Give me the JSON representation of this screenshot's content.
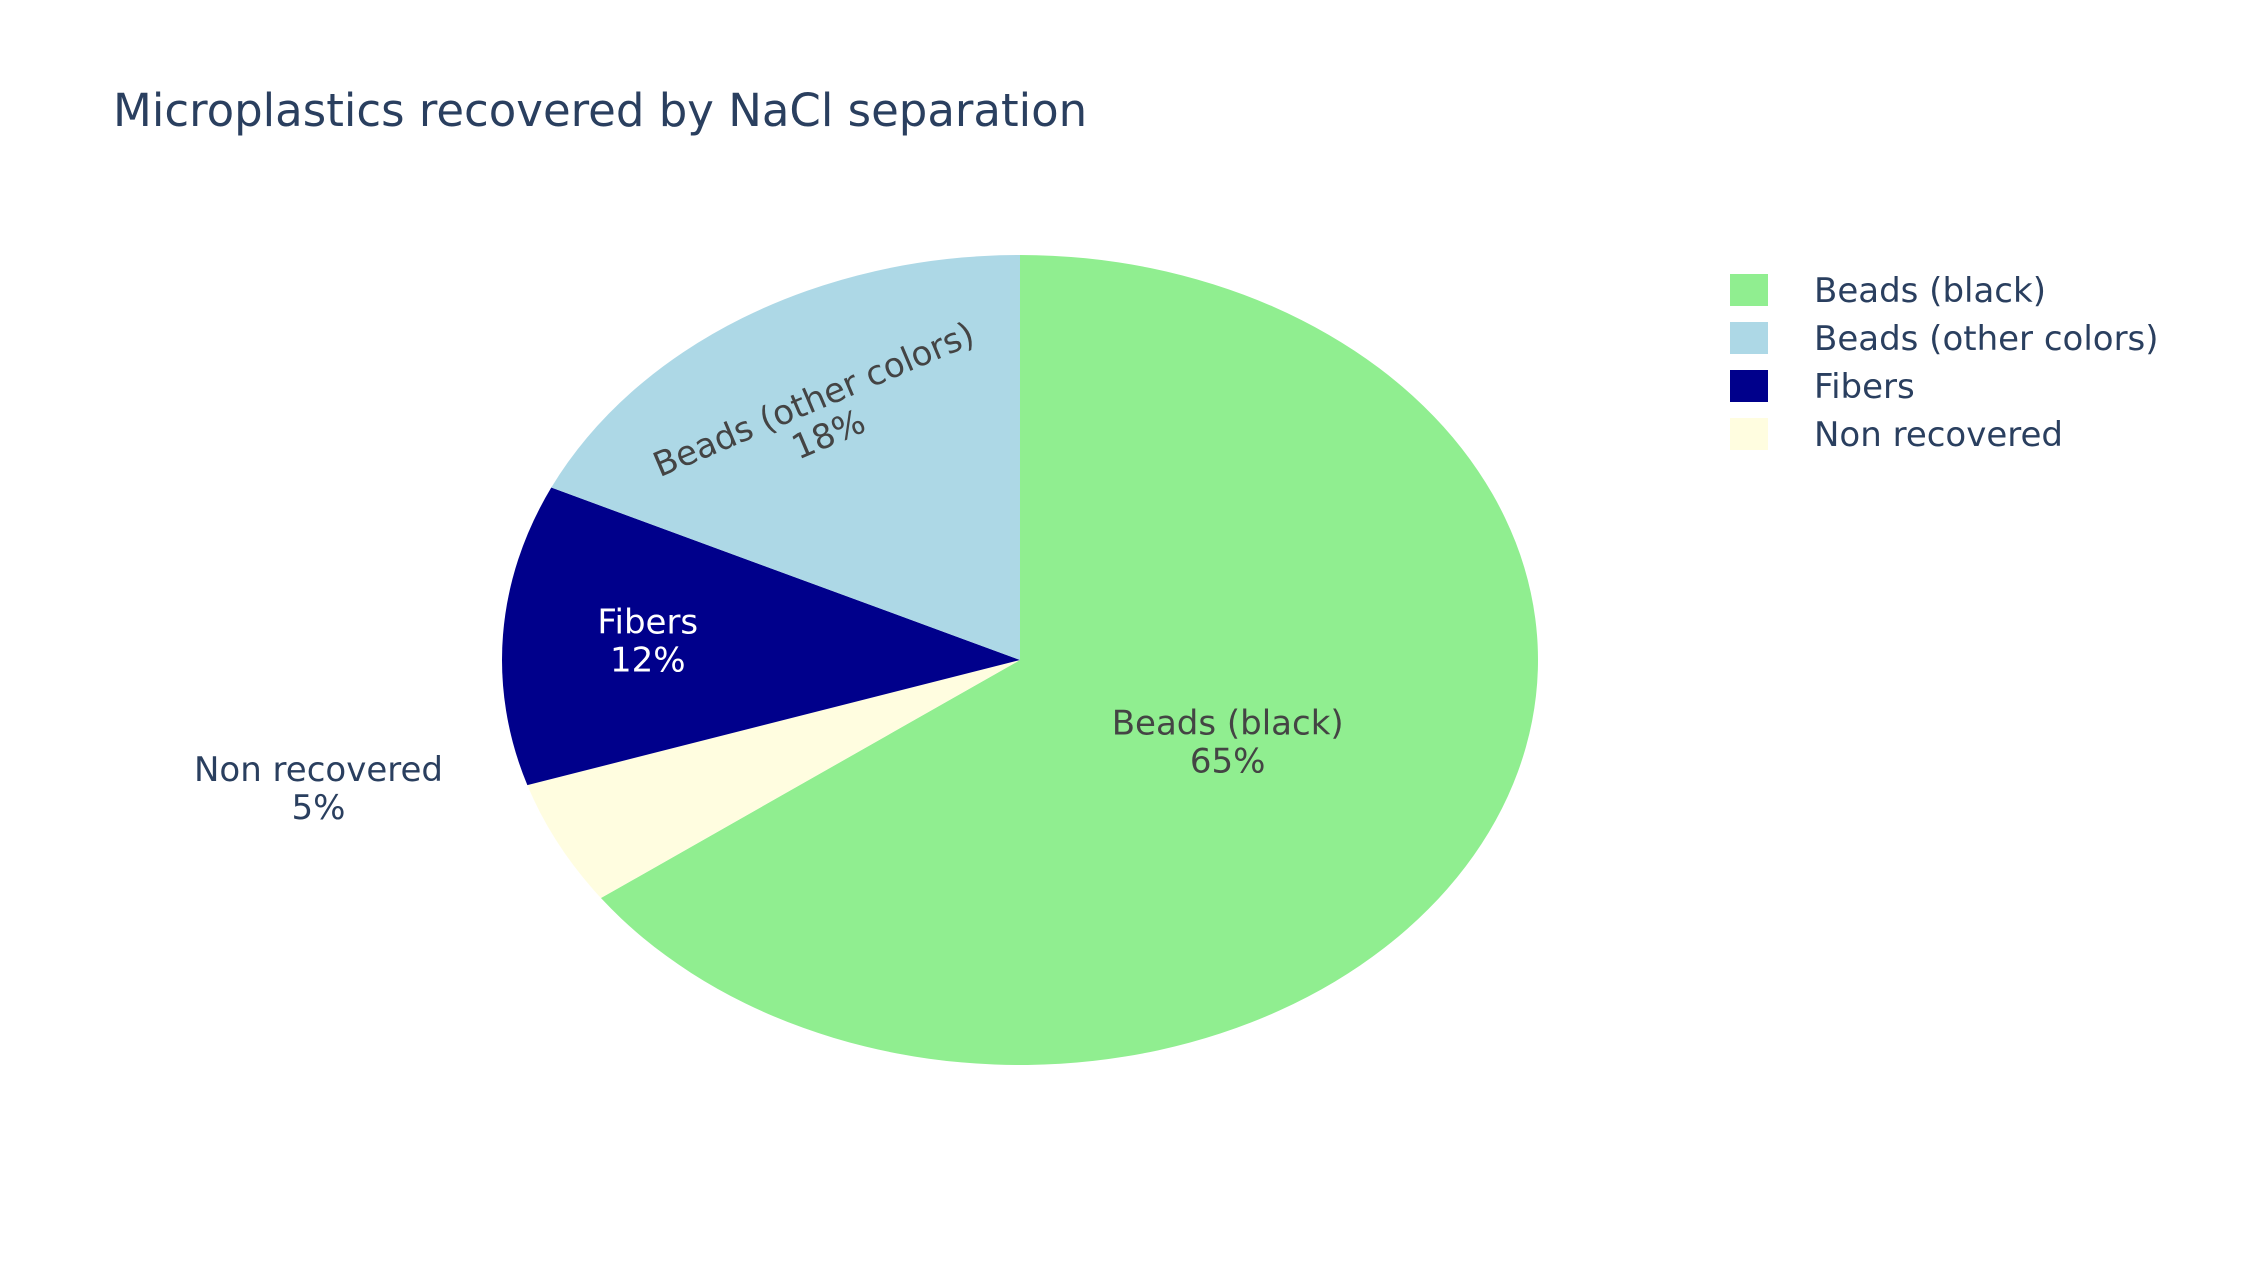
{
  "chart_data": {
    "type": "pie",
    "title": "Microplastics recovered by NaCl separation",
    "direction": "clockwise",
    "start": "12 o'clock",
    "legend_position": "top-right",
    "slices": [
      {
        "label": "Beads (black)",
        "value": 65,
        "percent_label": "65%",
        "color": "#90ee90",
        "text_color": "#444444",
        "label_position": "inside"
      },
      {
        "label": "Non recovered",
        "value": 5,
        "percent_label": "5%",
        "color": "#fffde0",
        "text_color": "#2a3f5f",
        "label_position": "outside"
      },
      {
        "label": "Fibers",
        "value": 12,
        "percent_label": "12%",
        "color": "#00008b",
        "text_color": "#ffffff",
        "label_position": "inside"
      },
      {
        "label": "Beads (other colors)",
        "value": 18,
        "percent_label": "18%",
        "color": "#add8e6",
        "text_color": "#444444",
        "label_position": "inside-rotated"
      }
    ],
    "legend": [
      {
        "label": "Beads (black)",
        "color": "#90ee90"
      },
      {
        "label": "Beads (other colors)",
        "color": "#add8e6"
      },
      {
        "label": "Fibers",
        "color": "#00008b"
      },
      {
        "label": "Non recovered",
        "color": "#fffde0"
      }
    ]
  }
}
